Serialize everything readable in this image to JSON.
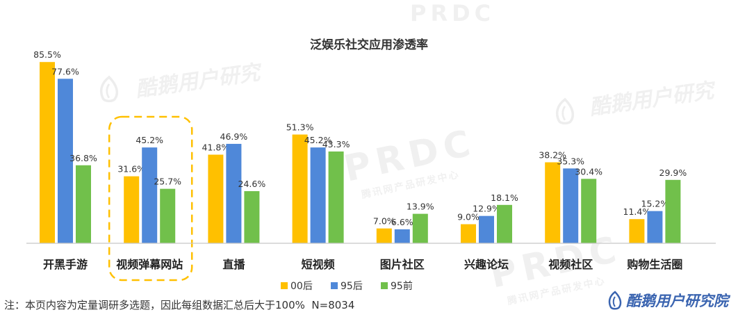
{
  "chart_data": {
    "type": "bar",
    "title": "泛娱乐社交应用渗透率",
    "categories": [
      "开黑手游",
      "视频弹幕网站",
      "直播",
      "短视频",
      "图片社区",
      "兴趣论坛",
      "视频社区",
      "购物生活圈"
    ],
    "series": [
      {
        "name": "00后",
        "values": [
          85.5,
          31.6,
          41.8,
          51.3,
          7.0,
          9.0,
          38.2,
          11.4
        ],
        "color": "#FFC000"
      },
      {
        "name": "95后",
        "values": [
          77.6,
          45.2,
          46.9,
          45.2,
          6.6,
          12.9,
          35.3,
          15.2
        ],
        "color": "#4F88D9"
      },
      {
        "name": "95前",
        "values": [
          36.8,
          25.7,
          24.6,
          43.3,
          13.9,
          18.1,
          30.4,
          29.9
        ],
        "color": "#71C04B"
      }
    ],
    "unit": "%",
    "ylim": [
      0,
      100
    ],
    "grid": false,
    "data_labels": true,
    "legend": "bottom",
    "highlight_category_index": 1,
    "highlight_color": "#FFC000"
  },
  "footnote": "注：本页内容为定量调研多选题，因此每组数据汇总后大于100%  N=8034",
  "logo": {
    "text": "酷鹅用户研究院",
    "icon": "goose-flame-icon",
    "color": "#3A64B0"
  },
  "watermarks": {
    "brand": "酷鹅用户研究",
    "prdc": "PRDC",
    "prdc_sub": "腾讯网产品研发中心"
  }
}
